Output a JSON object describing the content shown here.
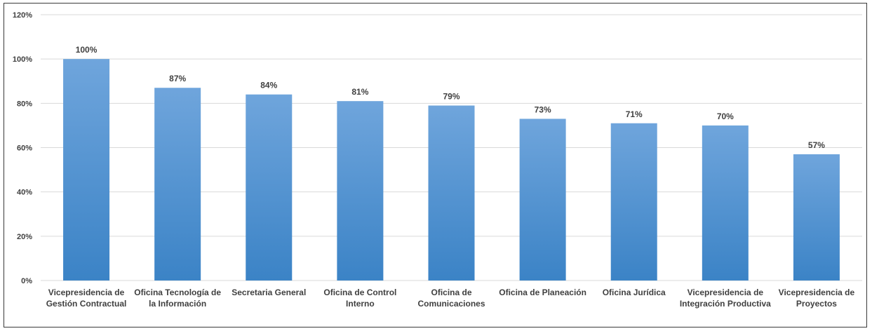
{
  "chart_data": {
    "type": "bar",
    "title": "",
    "xlabel": "",
    "ylabel": "",
    "ylim": [
      0,
      120
    ],
    "y_ticks": [
      "0%",
      "20%",
      "40%",
      "60%",
      "80%",
      "100%",
      "120%"
    ],
    "y_tick_values": [
      0,
      20,
      40,
      60,
      80,
      100,
      120
    ],
    "grid": true,
    "legend": "none",
    "categories": [
      [
        "Vicepresidencia de",
        "Gestión Contractual"
      ],
      [
        "Oficina Tecnología de",
        "la Información"
      ],
      [
        "Secretaria General"
      ],
      [
        "Oficina de Control",
        "Interno"
      ],
      [
        "Oficina de",
        "Comunicaciones"
      ],
      [
        "Oficina de Planeación"
      ],
      [
        "Oficina Jurídica"
      ],
      [
        "Vicepresidencia de",
        "Integración Productiva"
      ],
      [
        "Vicepresidencia de",
        "Proyectos"
      ]
    ],
    "values": [
      100,
      87,
      84,
      81,
      79,
      73,
      71,
      70,
      57
    ],
    "data_labels": [
      "100%",
      "87%",
      "84%",
      "81%",
      "79%",
      "73%",
      "71%",
      "70%",
      "57%"
    ],
    "colors": {
      "bar_top": "#6fa5dc",
      "bar_bottom": "#3b83c6",
      "grid": "#d9d9d9",
      "text": "#404040"
    }
  }
}
